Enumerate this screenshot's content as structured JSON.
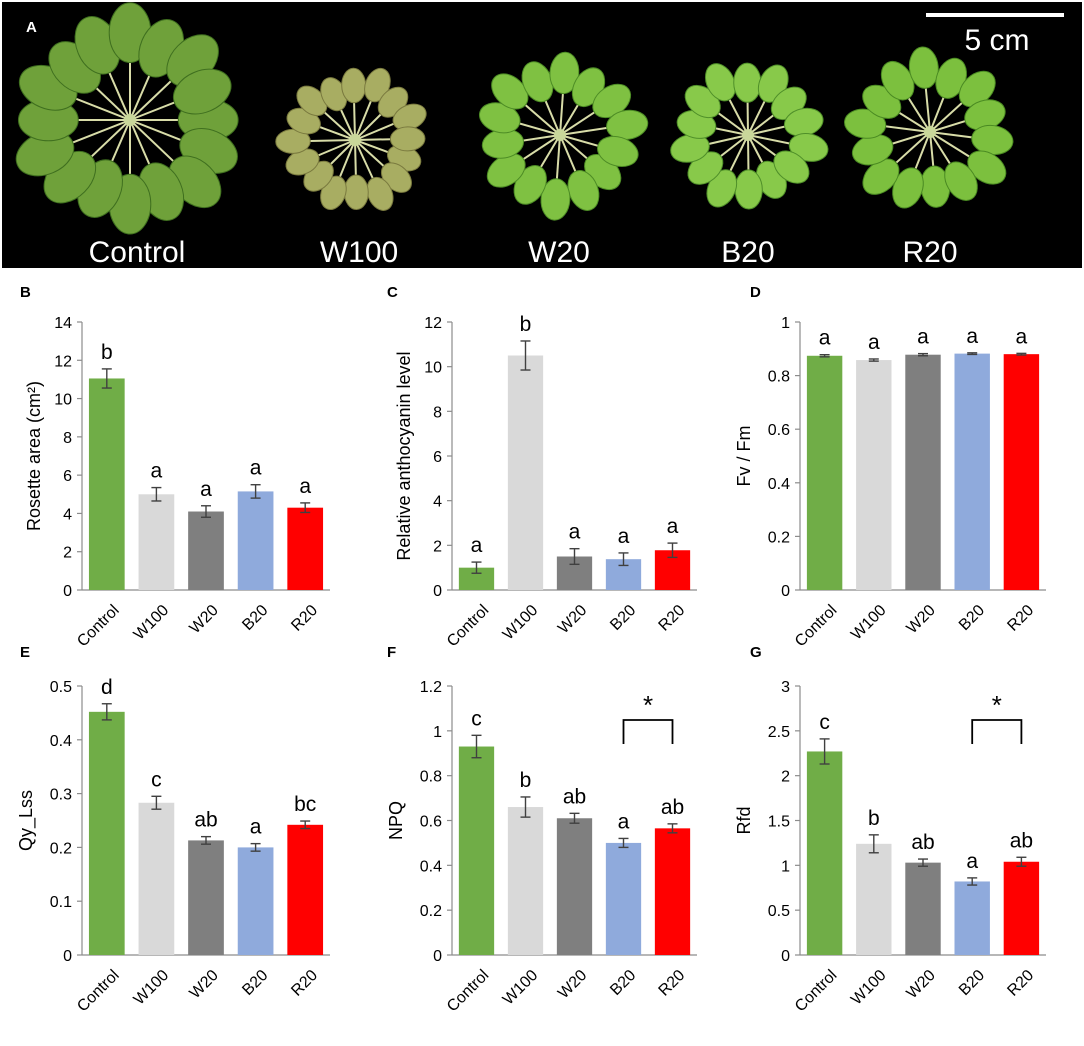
{
  "photo": {
    "panel_label": "A",
    "scale_bar_label": "5 cm",
    "plants": [
      "Control",
      "W100",
      "W20",
      "B20",
      "R20"
    ]
  },
  "colors": {
    "Control": "#70ad47",
    "W100": "#d9d9d9",
    "W20": "#7f7f7f",
    "B20": "#8faadc",
    "R20": "#ff0000"
  },
  "chart_data": [
    {
      "panel": "B",
      "type": "bar",
      "categories": [
        "Control",
        "W100",
        "W20",
        "B20",
        "R20"
      ],
      "values": [
        11.05,
        5.0,
        4.1,
        5.15,
        4.3
      ],
      "errors": [
        0.5,
        0.35,
        0.3,
        0.35,
        0.25
      ],
      "letters": [
        "b",
        "a",
        "a",
        "a",
        "a"
      ],
      "ylabel": "Rosette area (cm²)",
      "ylim": [
        0,
        14
      ],
      "yticks": [
        "0",
        "2",
        "4",
        "6",
        "8",
        "10",
        "12",
        "14"
      ]
    },
    {
      "panel": "C",
      "type": "bar",
      "categories": [
        "Control",
        "W100",
        "W20",
        "B20",
        "R20"
      ],
      "values": [
        1.0,
        10.5,
        1.5,
        1.38,
        1.78
      ],
      "errors": [
        0.25,
        0.65,
        0.35,
        0.28,
        0.32
      ],
      "letters": [
        "a",
        "b",
        "a",
        "a",
        "a"
      ],
      "ylabel": "Relative anthocyanin level",
      "ylim": [
        0,
        12
      ],
      "yticks": [
        "0",
        "2",
        "4",
        "6",
        "8",
        "10",
        "12"
      ]
    },
    {
      "panel": "D",
      "type": "bar",
      "categories": [
        "Control",
        "W100",
        "W20",
        "B20",
        "R20"
      ],
      "values": [
        0.874,
        0.858,
        0.878,
        0.882,
        0.88
      ],
      "errors": [
        0.004,
        0.004,
        0.004,
        0.003,
        0.003
      ],
      "letters": [
        "a",
        "a",
        "a",
        "a",
        "a"
      ],
      "ylabel": "Fv / Fm",
      "ylim": [
        0,
        1
      ],
      "yticks": [
        "0",
        "0.2",
        "0.4",
        "0.6",
        "0.8",
        "1"
      ]
    },
    {
      "panel": "E",
      "type": "bar",
      "categories": [
        "Control",
        "W100",
        "W20",
        "B20",
        "R20"
      ],
      "values": [
        0.452,
        0.283,
        0.213,
        0.2,
        0.242
      ],
      "errors": [
        0.015,
        0.012,
        0.007,
        0.007,
        0.007
      ],
      "letters": [
        "d",
        "c",
        "ab",
        "a",
        "bc"
      ],
      "ylabel": "Qy_Lss",
      "ylim": [
        0,
        0.5
      ],
      "yticks": [
        "0",
        "0.1",
        "0.2",
        "0.3",
        "0.4",
        "0.5"
      ]
    },
    {
      "panel": "F",
      "type": "bar",
      "categories": [
        "Control",
        "W100",
        "W20",
        "B20",
        "R20"
      ],
      "values": [
        0.93,
        0.66,
        0.61,
        0.5,
        0.565
      ],
      "errors": [
        0.05,
        0.045,
        0.022,
        0.02,
        0.02
      ],
      "letters": [
        "c",
        "b",
        "ab",
        "a",
        "ab"
      ],
      "ylabel": "NPQ",
      "ylim": [
        0,
        1.2
      ],
      "yticks": [
        "0",
        "0.2",
        "0.4",
        "0.6",
        "0.8",
        "1",
        "1.2"
      ],
      "bracket": {
        "from": 3,
        "to": 4,
        "label": "*"
      }
    },
    {
      "panel": "G",
      "type": "bar",
      "categories": [
        "Control",
        "W100",
        "W20",
        "B20",
        "R20"
      ],
      "values": [
        2.27,
        1.24,
        1.03,
        0.82,
        1.04
      ],
      "errors": [
        0.14,
        0.1,
        0.04,
        0.04,
        0.05
      ],
      "letters": [
        "c",
        "b",
        "ab",
        "a",
        "ab"
      ],
      "ylabel": "Rfd",
      "ylim": [
        0,
        3
      ],
      "yticks": [
        "0",
        "0.5",
        "1",
        "1.5",
        "2",
        "2.5",
        "3"
      ],
      "bracket": {
        "from": 3,
        "to": 4,
        "label": "*"
      }
    }
  ]
}
